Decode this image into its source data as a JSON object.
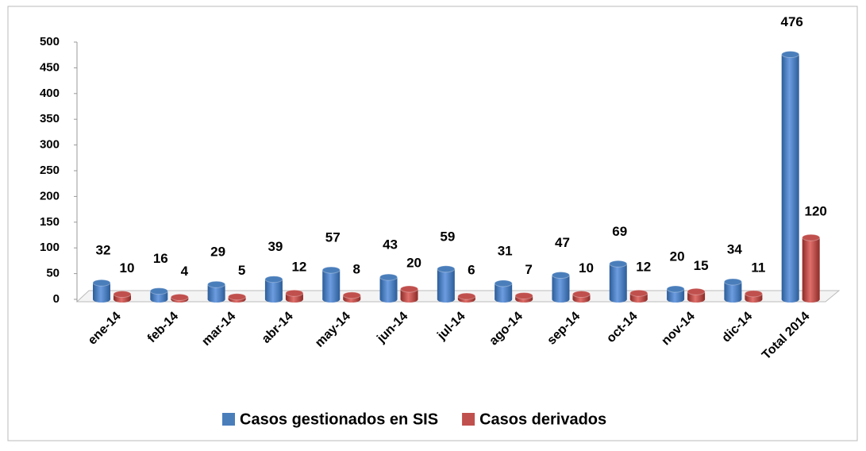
{
  "chart_data": {
    "type": "bar",
    "categories": [
      "ene-14",
      "feb-14",
      "mar-14",
      "abr-14",
      "may-14",
      "jun-14",
      "jul-14",
      "ago-14",
      "sep-14",
      "oct-14",
      "nov-14",
      "dic-14",
      "Total 2014"
    ],
    "series": [
      {
        "name": "Casos gestionados en SIS",
        "color": "#4a7ebb",
        "values": [
          32,
          16,
          29,
          39,
          57,
          43,
          59,
          31,
          47,
          69,
          20,
          34,
          476
        ]
      },
      {
        "name": "Casos derivados",
        "color": "#c0504d",
        "values": [
          10,
          4,
          5,
          12,
          8,
          20,
          6,
          7,
          10,
          12,
          15,
          11,
          120
        ]
      }
    ],
    "ylim": [
      0,
      500
    ],
    "yticks": [
      0,
      50,
      100,
      150,
      200,
      250,
      300,
      350,
      400,
      450,
      500
    ],
    "grid": false,
    "legend": "bottom"
  }
}
